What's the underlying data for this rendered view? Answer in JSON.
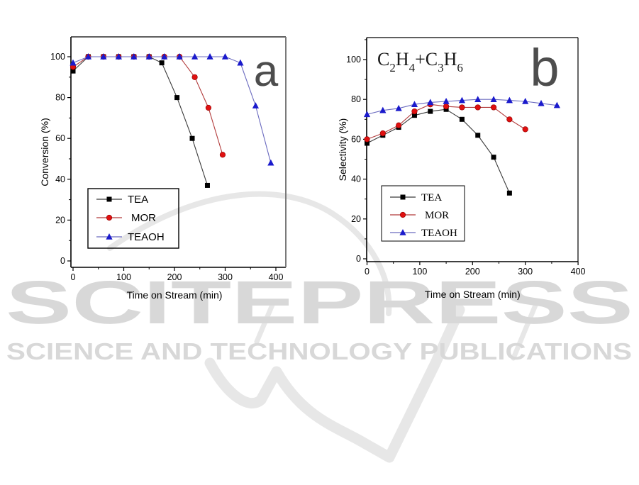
{
  "page": {
    "background": "#ffffff"
  },
  "watermark": {
    "title": "SCITEPRESS",
    "subtitle": "SCIENCE AND TECHNOLOGY PUBLICATIONS",
    "text_color": "#d8d8d8",
    "shape_color": "#e7e7e7"
  },
  "panel_letter_color": "#4d4d4d",
  "chart_data": [
    {
      "id": "a",
      "type": "line",
      "panel_label": "a",
      "xlabel": "Time on Stream (min)",
      "ylabel": "Conversion (%)",
      "xlim": [
        0,
        400
      ],
      "ylim": [
        0,
        100
      ],
      "x_ticks": [
        0,
        100,
        200,
        300,
        400
      ],
      "x_minor_ticks": [
        50,
        150,
        250,
        350
      ],
      "y_ticks": [
        0,
        20,
        40,
        60,
        80,
        100
      ],
      "y_minor_ticks": [
        10,
        30,
        50,
        70,
        90
      ],
      "grid": false,
      "legend_position": "lower-left",
      "series": [
        {
          "name": "TEA",
          "legend_label": "TEA",
          "marker": "square",
          "color": "#000000",
          "line_color": "#3a3a3a",
          "x": [
            0,
            30,
            60,
            90,
            120,
            150,
            175,
            205,
            235,
            265
          ],
          "y": [
            93,
            100,
            100,
            100,
            100,
            100,
            97,
            80,
            60,
            37
          ]
        },
        {
          "name": "MOR",
          "legend_label": " MOR",
          "marker": "circle",
          "color": "#e01010",
          "line_color": "#b23b3b",
          "x": [
            0,
            30,
            60,
            90,
            120,
            150,
            180,
            210,
            240,
            267,
            295
          ],
          "y": [
            95,
            100,
            100,
            100,
            100,
            100,
            100,
            100,
            90,
            75,
            52
          ]
        },
        {
          "name": "TEAOH",
          "legend_label": "TEAOH",
          "marker": "triangle",
          "color": "#1a1acc",
          "line_color": "#6a6abf",
          "x": [
            0,
            30,
            60,
            90,
            120,
            150,
            180,
            210,
            240,
            270,
            300,
            330,
            360,
            390
          ],
          "y": [
            97,
            100,
            100,
            100,
            100,
            100,
            100,
            100,
            100,
            100,
            100,
            97,
            76,
            48
          ]
        }
      ]
    },
    {
      "id": "b",
      "type": "line",
      "panel_label": "b",
      "annotation_parts": [
        {
          "t": "C"
        },
        {
          "t": "2",
          "sub": true
        },
        {
          "t": "H"
        },
        {
          "t": "4",
          "sub": true
        },
        {
          "t": "+"
        },
        {
          "t": "C"
        },
        {
          "t": "3",
          "sub": true
        },
        {
          "t": "H"
        },
        {
          "t": "6",
          "sub": true
        }
      ],
      "xlabel": "Time on Stream (min)",
      "ylabel": "Selectivity (%)",
      "xlim": [
        0,
        400
      ],
      "ylim": [
        0,
        100
      ],
      "x_ticks": [
        0,
        100,
        200,
        300,
        400
      ],
      "x_minor_ticks": [
        50,
        150,
        250,
        350
      ],
      "y_ticks": [
        0,
        20,
        40,
        60,
        80,
        100
      ],
      "y_minor_ticks": [
        10,
        30,
        50,
        70,
        90,
        110
      ],
      "grid": false,
      "legend_position": "lower-left",
      "series": [
        {
          "name": "TEA",
          "legend_label": "TEA",
          "marker": "square",
          "color": "#000000",
          "line_color": "#3a3a3a",
          "x": [
            0,
            30,
            60,
            90,
            120,
            150,
            180,
            210,
            240,
            270
          ],
          "y": [
            58,
            62,
            66,
            72,
            74,
            75,
            70,
            62,
            51,
            33
          ]
        },
        {
          "name": "MOR",
          "legend_label": " MOR",
          "marker": "circle",
          "color": "#e01010",
          "line_color": "#b23b3b",
          "x": [
            0,
            30,
            60,
            90,
            120,
            150,
            180,
            210,
            240,
            270,
            300
          ],
          "y": [
            60,
            63,
            67,
            74,
            77.5,
            76.5,
            76,
            76,
            76,
            70,
            65
          ]
        },
        {
          "name": "TEAOH",
          "legend_label": "TEAOH",
          "marker": "triangle",
          "color": "#1a1acc",
          "line_color": "#6a6abf",
          "x": [
            0,
            30,
            60,
            90,
            120,
            150,
            180,
            210,
            240,
            270,
            300,
            330,
            360
          ],
          "y": [
            72.5,
            74.5,
            75.5,
            77.5,
            78.5,
            79,
            79.5,
            80,
            80,
            79.5,
            79,
            78,
            77
          ]
        }
      ]
    }
  ]
}
